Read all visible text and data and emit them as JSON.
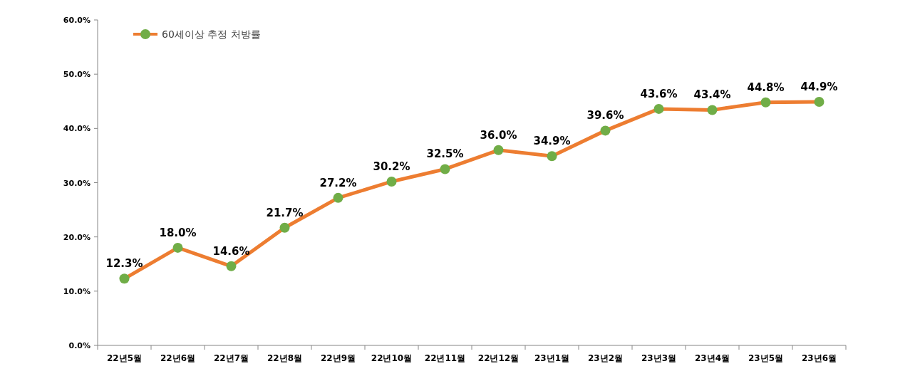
{
  "chart_data": {
    "type": "line",
    "categories": [
      "22년5월",
      "22년6월",
      "22년7월",
      "22년8월",
      "22년9월",
      "22년10월",
      "22년11월",
      "22년12월",
      "23년1월",
      "23년2월",
      "23년3월",
      "23년4월",
      "23년5월",
      "23년6월"
    ],
    "series": [
      {
        "name": "60세이상 추정 처방률",
        "color": "#ed7d31",
        "colors": [
          "#70ad47",
          "#70ad47",
          "#70ad47",
          "#70ad47",
          "#70ad47",
          "#70ad47",
          "#70ad47",
          "#70ad47",
          "#70ad47",
          "#70ad47",
          "#70ad47",
          "#70ad47",
          "#70ad47",
          "#70ad47"
        ],
        "values": [
          12.3,
          18.0,
          14.6,
          21.7,
          27.2,
          30.2,
          32.5,
          36.0,
          34.9,
          39.6,
          43.6,
          43.4,
          44.8,
          44.9
        ],
        "value_labels": [
          "12.3%",
          "18.0%",
          "14.6%",
          "21.7%",
          "27.2%",
          "30.2%",
          "32.5%",
          "36.0%",
          "34.9%",
          "39.6%",
          "43.6%",
          "43.4%",
          "44.8%",
          "44.9%"
        ]
      }
    ],
    "ylim": [
      0,
      60
    ],
    "yticks": [
      {
        "value": 0,
        "label": "0.0%"
      },
      {
        "value": 10,
        "label": "10.0%"
      },
      {
        "value": 20,
        "label": "20.0%"
      },
      {
        "value": 30,
        "label": "30.0%"
      },
      {
        "value": 40,
        "label": "40.0%"
      },
      {
        "value": 50,
        "label": "50.0%"
      },
      {
        "value": 60,
        "label": "60.0%"
      }
    ],
    "grid": false,
    "legend": "top left",
    "marker": "circle",
    "line_style": "solid"
  }
}
